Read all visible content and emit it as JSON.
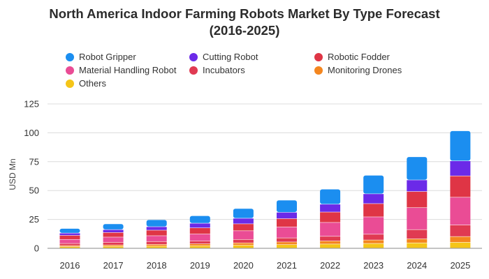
{
  "chart_data": {
    "type": "stacked-bar",
    "title_line1": "North America Indoor Farming Robots Market By Type Forecast",
    "title_line2": "(2016-2025)",
    "ylabel": "USD Mn",
    "xlabel": "",
    "ylim": [
      0,
      125
    ],
    "yticks": [
      0,
      25,
      50,
      75,
      100,
      125
    ],
    "grid": true,
    "legend_position": "top",
    "categories": [
      "2016",
      "2017",
      "2018",
      "2019",
      "2020",
      "2021",
      "2022",
      "2023",
      "2024",
      "2025"
    ],
    "series": [
      {
        "name": "Others",
        "color": "#f5c518",
        "values": [
          1.2,
          1.5,
          1.7,
          2.0,
          2.5,
          3.0,
          3.5,
          4.0,
          4.5,
          5.0
        ]
      },
      {
        "name": "Monitoring Drones",
        "color": "#f4861f",
        "values": [
          1.0,
          1.2,
          1.5,
          1.7,
          2.0,
          2.3,
          2.7,
          3.0,
          3.5,
          5.0
        ]
      },
      {
        "name": "Incubators",
        "color": "#e03a52",
        "values": [
          1.8,
          2.3,
          2.5,
          2.5,
          3.0,
          3.5,
          4.0,
          5.0,
          8.0,
          10.0
        ]
      },
      {
        "name": "Material Handling Robot",
        "color": "#ea4c95",
        "values": [
          3.5,
          4.5,
          5.0,
          6.0,
          7.5,
          9.5,
          12.0,
          15.0,
          19.0,
          24.0
        ]
      },
      {
        "name": "Robotic Fodder",
        "color": "#df3545",
        "values": [
          3.5,
          4.0,
          4.8,
          5.3,
          6.0,
          7.2,
          9.0,
          11.5,
          14.0,
          18.5
        ]
      },
      {
        "name": "Cutting Robot",
        "color": "#6b2ae8",
        "values": [
          2.0,
          2.5,
          3.0,
          4.0,
          4.8,
          5.5,
          6.8,
          8.5,
          10.0,
          13.0
        ]
      },
      {
        "name": "Robot Gripper",
        "color": "#1b8ef0",
        "values": [
          4.0,
          5.0,
          6.0,
          6.5,
          8.5,
          10.5,
          13.0,
          16.0,
          20.0,
          26.0
        ]
      }
    ]
  },
  "legend": [
    {
      "label": "Robot Gripper",
      "color": "#1b8ef0"
    },
    {
      "label": "Cutting Robot",
      "color": "#6b2ae8"
    },
    {
      "label": "Robotic Fodder",
      "color": "#df3545"
    },
    {
      "label": "Material Handling Robot",
      "color": "#ea4c95"
    },
    {
      "label": "Incubators",
      "color": "#e03a52"
    },
    {
      "label": "Monitoring Drones",
      "color": "#f4861f"
    },
    {
      "label": "Others",
      "color": "#f5c518"
    }
  ]
}
